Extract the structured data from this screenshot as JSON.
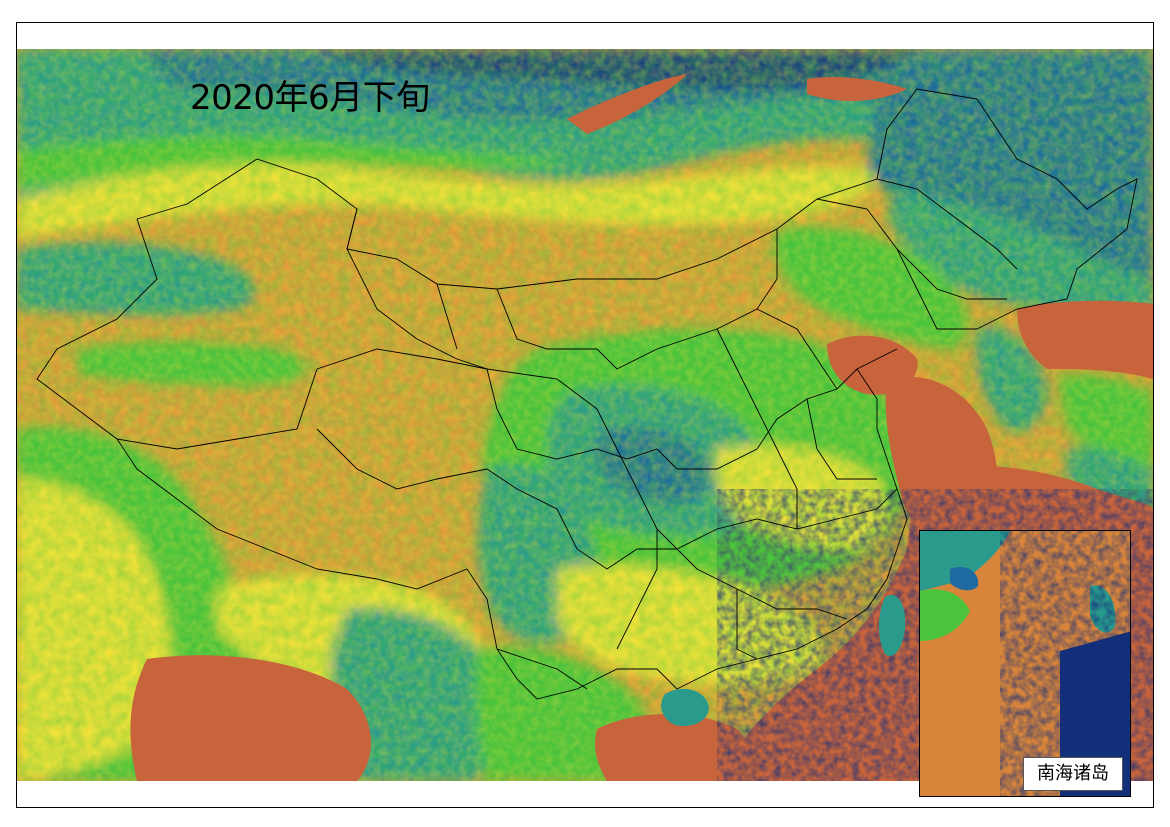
{
  "map": {
    "title": "2020年6月下旬",
    "inset_label": "南海诸岛",
    "palette": {
      "desert_orange": "#e39a3b",
      "sea_rust": "#c8643c",
      "yellow": "#f2e23a",
      "green": "#4cc33c",
      "teal": "#2a9a8c",
      "blue": "#1f6aa0",
      "navy": "#132f7a",
      "border_black": "#000000"
    }
  }
}
